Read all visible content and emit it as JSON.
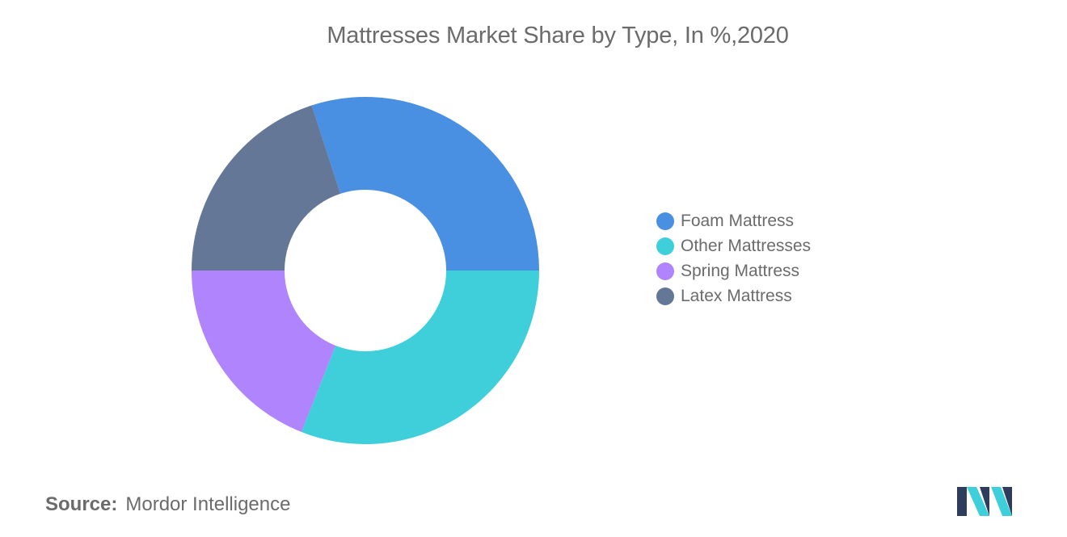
{
  "chart_data": {
    "type": "pie",
    "donut": true,
    "title": "Mattresses Market Share by Type, In %,2020",
    "categories": [
      "Foam Mattress",
      "Other Mattresses",
      "Spring Mattress",
      "Latex Mattress"
    ],
    "values": [
      30,
      31,
      19,
      20
    ],
    "colors": [
      "#4a90e2",
      "#3fcfdb",
      "#b084fc",
      "#647796"
    ],
    "legend_position": "right"
  },
  "source": {
    "label": "Source:",
    "text": "Mordor Intelligence"
  },
  "logo": {
    "icon": "mordor-intelligence-logo-icon",
    "colors": [
      "#2d3d5b",
      "#3fcfdb"
    ]
  }
}
